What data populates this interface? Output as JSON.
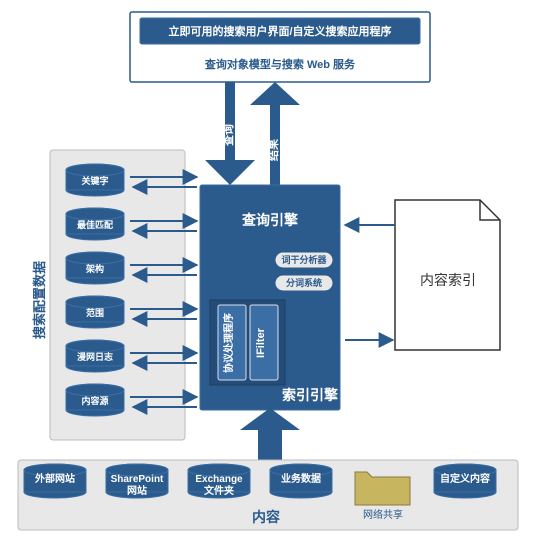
{
  "topBlueBox": "立即可用的搜索用户界面/自定义搜索应用程序",
  "topWhiteBox": "查询对象模型与搜索 Web 服务",
  "arrowLabels": {
    "query": "查询",
    "result": "结果"
  },
  "leftPanelTitle": "搜索配置数据",
  "leftCylinders": [
    "关键字",
    "最佳匹配",
    "架构",
    "范围",
    "漫网日志",
    "内容源"
  ],
  "queryEngine": "查询引擎",
  "indexEngine": "索引引擎",
  "protocolHandler": "协议处理程序",
  "ifilter": "IFilter",
  "pill1": "词干分析器",
  "pill2": "分词系统",
  "contentIndex": "内容索引",
  "bottomTitle": "内容",
  "bottomItems": [
    {
      "label1": "外部网站",
      "label2": ""
    },
    {
      "label1": "SharePoint",
      "label2": "网站"
    },
    {
      "label1": "Exchange",
      "label2": "文件夹"
    },
    {
      "label1": "业务数据",
      "label2": ""
    },
    {
      "label1": "网络共享",
      "label2": "",
      "folder": true
    },
    {
      "label1": "自定义内容",
      "label2": ""
    }
  ],
  "colors": {
    "blue": "#2b5a8c",
    "blueStroke": "#3a6ea5",
    "light": "#e8e8e8",
    "folder": "#c8b560"
  }
}
